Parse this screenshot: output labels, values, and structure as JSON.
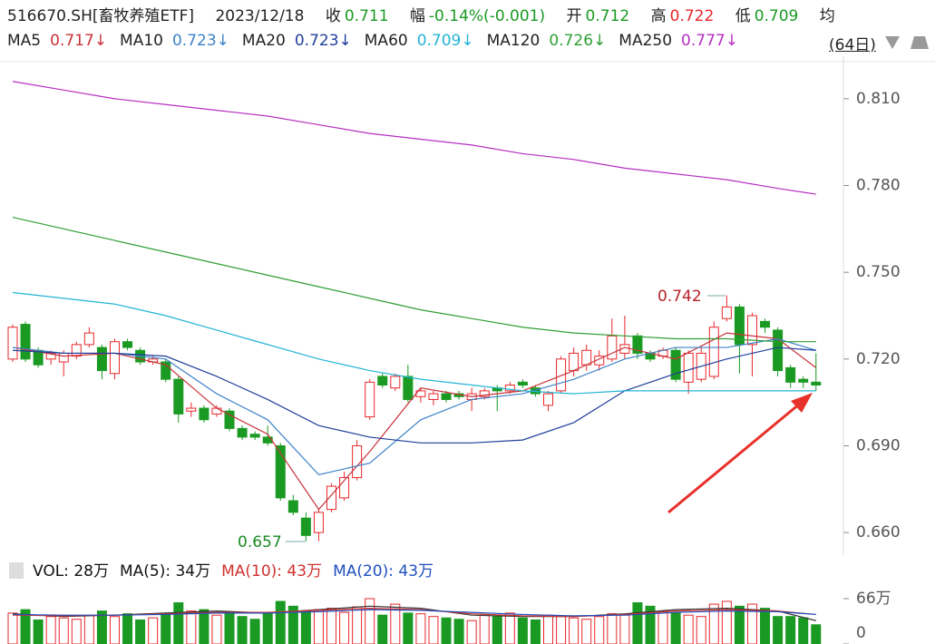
{
  "chart_data": {
    "type": "candlestick",
    "info": {
      "title": "516670.SH[畜牧养殖ETF]",
      "date": "2023/12/18",
      "close_label": "收",
      "close": "0.711",
      "change_label": "幅",
      "change": "-0.14%(-0.001)",
      "open_label": "开",
      "open": "0.712",
      "high_label": "高",
      "high": "0.722",
      "low_label": "低",
      "low": "0.709",
      "avg_label": "均",
      "period": "(64日)"
    },
    "ylim": [
      0.6522,
      0.8247
    ],
    "yticks": [
      {
        "value": 0.81,
        "label": "0.810"
      },
      {
        "value": 0.78,
        "label": "0.780"
      },
      {
        "value": 0.75,
        "label": "0.750"
      },
      {
        "value": 0.72,
        "label": "0.720"
      },
      {
        "value": 0.69,
        "label": "0.690"
      },
      {
        "value": 0.66,
        "label": "0.660"
      }
    ],
    "up_color": "#e8272b",
    "down_color": "#1a9a22",
    "open": [
      0.72,
      0.732,
      0.723,
      0.72,
      0.719,
      0.721,
      0.725,
      0.724,
      0.715,
      0.726,
      0.723,
      0.719,
      0.719,
      0.713,
      0.702,
      0.703,
      0.701,
      0.702,
      0.696,
      0.694,
      0.693,
      0.69,
      0.671,
      0.665,
      0.66,
      0.668,
      0.672,
      0.679,
      0.7,
      0.714,
      0.71,
      0.714,
      0.707,
      0.706,
      0.708,
      0.708,
      0.706,
      0.707,
      0.71,
      0.709,
      0.712,
      0.71,
      0.704,
      0.709,
      0.716,
      0.718,
      0.718,
      0.72,
      0.722,
      0.728,
      0.722,
      0.721,
      0.723,
      0.712,
      0.713,
      0.714,
      0.734,
      0.738,
      0.725,
      0.733,
      0.73,
      0.717,
      0.713,
      0.712
    ],
    "high": [
      0.732,
      0.733,
      0.724,
      0.723,
      0.723,
      0.726,
      0.731,
      0.725,
      0.727,
      0.727,
      0.724,
      0.721,
      0.72,
      0.714,
      0.705,
      0.704,
      0.704,
      0.703,
      0.697,
      0.695,
      0.697,
      0.691,
      0.673,
      0.667,
      0.668,
      0.677,
      0.681,
      0.692,
      0.713,
      0.715,
      0.715,
      0.718,
      0.71,
      0.709,
      0.709,
      0.709,
      0.71,
      0.71,
      0.711,
      0.712,
      0.713,
      0.711,
      0.709,
      0.721,
      0.724,
      0.725,
      0.723,
      0.734,
      0.735,
      0.729,
      0.723,
      0.724,
      0.724,
      0.723,
      0.724,
      0.733,
      0.742,
      0.739,
      0.736,
      0.734,
      0.731,
      0.718,
      0.714,
      0.722
    ],
    "low": [
      0.719,
      0.719,
      0.717,
      0.718,
      0.714,
      0.72,
      0.724,
      0.713,
      0.713,
      0.723,
      0.718,
      0.718,
      0.712,
      0.698,
      0.7,
      0.698,
      0.7,
      0.695,
      0.692,
      0.692,
      0.69,
      0.671,
      0.666,
      0.657,
      0.657,
      0.667,
      0.671,
      0.678,
      0.699,
      0.71,
      0.709,
      0.705,
      0.705,
      0.704,
      0.705,
      0.706,
      0.702,
      0.706,
      0.702,
      0.708,
      0.71,
      0.707,
      0.702,
      0.708,
      0.714,
      0.716,
      0.716,
      0.719,
      0.72,
      0.72,
      0.719,
      0.72,
      0.712,
      0.708,
      0.712,
      0.713,
      0.733,
      0.715,
      0.714,
      0.729,
      0.714,
      0.71,
      0.71,
      0.709
    ],
    "close": [
      0.731,
      0.72,
      0.718,
      0.722,
      0.722,
      0.725,
      0.729,
      0.716,
      0.726,
      0.724,
      0.719,
      0.72,
      0.713,
      0.701,
      0.703,
      0.699,
      0.703,
      0.696,
      0.693,
      0.693,
      0.691,
      0.672,
      0.667,
      0.659,
      0.667,
      0.676,
      0.679,
      0.69,
      0.712,
      0.711,
      0.714,
      0.706,
      0.709,
      0.708,
      0.706,
      0.707,
      0.708,
      0.709,
      0.709,
      0.711,
      0.711,
      0.708,
      0.708,
      0.72,
      0.722,
      0.723,
      0.721,
      0.728,
      0.725,
      0.722,
      0.72,
      0.723,
      0.713,
      0.722,
      0.722,
      0.731,
      0.738,
      0.725,
      0.735,
      0.731,
      0.716,
      0.712,
      0.712,
      0.711
    ],
    "ma_x": [
      0,
      4,
      8,
      12,
      16,
      20,
      24,
      28,
      32,
      36,
      40,
      44,
      48,
      52,
      56,
      60,
      63
    ],
    "ma_lines": [
      {
        "name": "MA5",
        "last_label": "0.717↓",
        "color": "#c8323a",
        "values": [
          0.724,
          0.721,
          0.722,
          0.718,
          0.703,
          0.694,
          0.668,
          0.688,
          0.71,
          0.707,
          0.709,
          0.716,
          0.724,
          0.72,
          0.729,
          0.727,
          0.717
        ]
      },
      {
        "name": "MA10",
        "last_label": "0.723↓",
        "color": "#3c82c8",
        "values": [
          0.724,
          0.722,
          0.722,
          0.72,
          0.708,
          0.699,
          0.68,
          0.684,
          0.699,
          0.706,
          0.708,
          0.713,
          0.72,
          0.724,
          0.724,
          0.727,
          0.723
        ]
      },
      {
        "name": "MA20",
        "last_label": "0.723↓",
        "color": "#1f3f9a",
        "values": [
          0.723,
          0.722,
          0.722,
          0.721,
          0.714,
          0.706,
          0.697,
          0.693,
          0.691,
          0.691,
          0.692,
          0.698,
          0.709,
          0.715,
          0.72,
          0.724,
          0.723
        ]
      },
      {
        "name": "MA60",
        "last_label": "0.709↓",
        "color": "#22b4d4",
        "values": [
          0.743,
          0.741,
          0.739,
          0.735,
          0.73,
          0.725,
          0.72,
          0.716,
          0.713,
          0.711,
          0.709,
          0.708,
          0.709,
          0.709,
          0.709,
          0.709,
          0.709
        ]
      },
      {
        "name": "MA120",
        "last_label": "0.726↓",
        "color": "#2f9f34",
        "values": [
          0.769,
          0.765,
          0.761,
          0.757,
          0.753,
          0.749,
          0.745,
          0.741,
          0.737,
          0.734,
          0.731,
          0.729,
          0.728,
          0.727,
          0.727,
          0.726,
          0.726
        ]
      },
      {
        "name": "MA250",
        "last_label": "0.777↓",
        "color": "#b62fc2",
        "values": [
          0.816,
          0.813,
          0.81,
          0.808,
          0.806,
          0.804,
          0.801,
          0.798,
          0.796,
          0.794,
          0.791,
          0.789,
          0.786,
          0.784,
          0.782,
          0.779,
          0.777
        ]
      }
    ],
    "annotations": [
      {
        "text": "0.742"
      },
      {
        "text": "0.657"
      }
    ],
    "volume": {
      "legend": [
        {
          "text": "VOL: 28万",
          "color": "#111"
        },
        {
          "text": "MA(5): 34万",
          "color": "#111"
        },
        {
          "text": "MA(10): 43万",
          "color": "#d0312d"
        },
        {
          "text": "MA(20): 43万",
          "color": "#1f4fbf"
        }
      ],
      "ylim": [
        0,
        66
      ],
      "yticks": [
        {
          "value": 66,
          "label": "66万"
        },
        0
      ],
      "values": [
        45,
        50,
        35,
        40,
        38,
        36,
        42,
        48,
        40,
        44,
        35,
        38,
        45,
        60,
        48,
        50,
        42,
        45,
        40,
        36,
        44,
        62,
        55,
        48,
        50,
        52,
        46,
        54,
        66,
        42,
        58,
        45,
        44,
        40,
        38,
        36,
        34,
        42,
        40,
        45,
        38,
        35,
        42,
        40,
        38,
        36,
        40,
        44,
        42,
        60,
        55,
        48,
        45,
        42,
        40,
        58,
        62,
        55,
        58,
        52,
        40,
        40,
        38,
        28
      ],
      "ma_lines": [
        {
          "color": "#333333",
          "values": [
            44,
            40,
            42,
            45,
            48,
            45,
            50,
            55,
            52,
            42,
            40,
            40,
            44,
            50,
            52,
            48,
            34
          ]
        },
        {
          "color": "#d0312d",
          "values": [
            42,
            41,
            42,
            44,
            46,
            46,
            49,
            52,
            50,
            44,
            41,
            40,
            43,
            48,
            50,
            48,
            43
          ]
        },
        {
          "color": "#1f4fbf",
          "values": [
            43,
            42,
            42,
            43,
            45,
            45,
            47,
            50,
            49,
            46,
            43,
            41,
            42,
            46,
            48,
            47,
            43
          ]
        }
      ]
    }
  }
}
